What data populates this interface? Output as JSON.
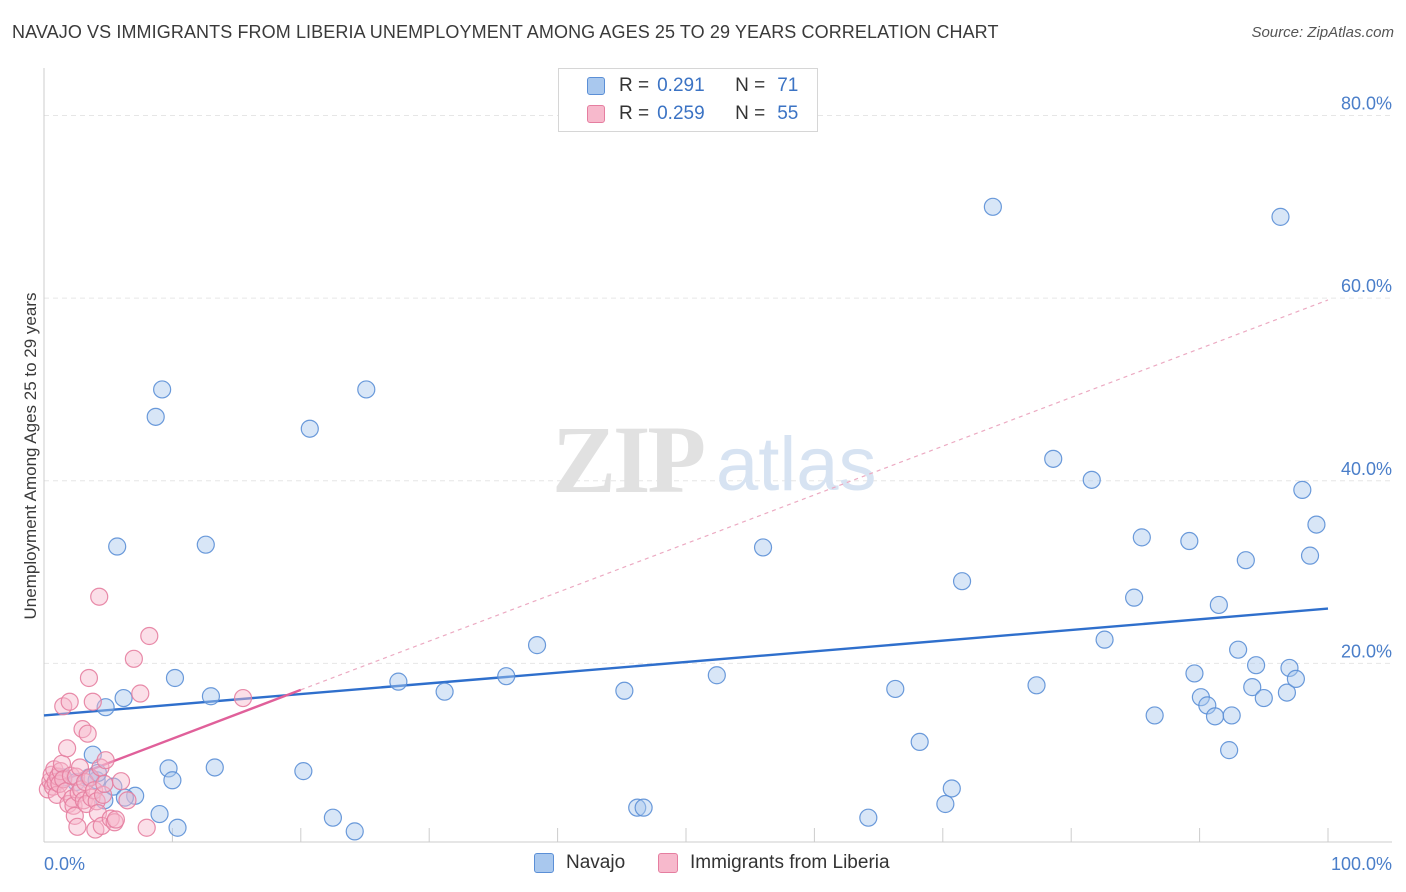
{
  "title": "NAVAJO VS IMMIGRANTS FROM LIBERIA UNEMPLOYMENT AMONG AGES 25 TO 29 YEARS CORRELATION CHART",
  "source": "Source: ZipAtlas.com",
  "watermark": {
    "zip": "ZIP",
    "atlas": "atlas"
  },
  "legend": {
    "rows": [
      {
        "r_label": "R =",
        "r_value": "0.291",
        "n_label": "N =",
        "n_value": "71"
      },
      {
        "r_label": "R =",
        "r_value": "0.259",
        "n_label": "N =",
        "n_value": "55"
      }
    ]
  },
  "colors": {
    "navajo_fill": "#a9c8ee",
    "navajo_stroke": "#5b8fd6",
    "navajo_line": "#2f6fcc",
    "liberia_fill": "#f7b9cc",
    "liberia_stroke": "#e57ea0",
    "liberia_line": "#e0609a",
    "grid": "#e6e6e6",
    "tick_text": "#4a7ec9"
  },
  "chart_data": {
    "type": "scatter",
    "title": "NAVAJO VS IMMIGRANTS FROM LIBERIA UNEMPLOYMENT AMONG AGES 25 TO 29 YEARS CORRELATION CHART",
    "xlabel": "",
    "ylabel": "Unemployment Among Ages 25 to 29 years",
    "xlim": [
      0,
      100
    ],
    "ylim": [
      0,
      84
    ],
    "x_tick_labels": [
      "0.0%",
      "100.0%"
    ],
    "y_ticks": [
      20,
      40,
      60,
      80
    ],
    "y_tick_labels": [
      "20.0%",
      "40.0%",
      "60.0%",
      "80.0%"
    ],
    "series": [
      {
        "name": "Navajo",
        "r": 0.291,
        "n": 71,
        "trend": {
          "x0": 0,
          "y0": 14.3,
          "x1": 100,
          "y1": 26.0,
          "style": "solid"
        },
        "points": [
          [
            1.5,
            7.5
          ],
          [
            2.5,
            7.0
          ],
          [
            3.5,
            7.5
          ],
          [
            3.8,
            10.0
          ],
          [
            4.1,
            7.2
          ],
          [
            4.8,
            15.2
          ],
          [
            4.2,
            8.0
          ],
          [
            5.4,
            6.5
          ],
          [
            4.7,
            5.0
          ],
          [
            5.7,
            32.8
          ],
          [
            6.2,
            16.2
          ],
          [
            7.1,
            5.5
          ],
          [
            6.3,
            5.3
          ],
          [
            8.7,
            47.0
          ],
          [
            9.2,
            50.0
          ],
          [
            9.0,
            3.5
          ],
          [
            9.7,
            8.5
          ],
          [
            10.0,
            7.2
          ],
          [
            10.2,
            18.4
          ],
          [
            10.4,
            2.0
          ],
          [
            12.6,
            33.0
          ],
          [
            13.0,
            16.4
          ],
          [
            13.3,
            8.6
          ],
          [
            20.2,
            8.2
          ],
          [
            20.7,
            45.7
          ],
          [
            22.5,
            3.1
          ],
          [
            24.2,
            1.6
          ],
          [
            25.1,
            50.0
          ],
          [
            27.6,
            18.0
          ],
          [
            31.2,
            16.9
          ],
          [
            36.0,
            18.6
          ],
          [
            38.4,
            22.0
          ],
          [
            45.2,
            17.0
          ],
          [
            46.2,
            4.2
          ],
          [
            46.7,
            4.2
          ],
          [
            52.4,
            18.7
          ],
          [
            56.0,
            32.7
          ],
          [
            64.2,
            3.1
          ],
          [
            66.3,
            17.2
          ],
          [
            68.2,
            11.4
          ],
          [
            70.2,
            4.6
          ],
          [
            70.7,
            6.3
          ],
          [
            71.5,
            29.0
          ],
          [
            73.9,
            70.0
          ],
          [
            77.3,
            17.6
          ],
          [
            78.6,
            42.4
          ],
          [
            81.6,
            40.1
          ],
          [
            82.6,
            22.6
          ],
          [
            84.9,
            27.2
          ],
          [
            85.5,
            33.8
          ],
          [
            86.5,
            14.3
          ],
          [
            89.2,
            33.4
          ],
          [
            89.6,
            18.9
          ],
          [
            90.1,
            16.3
          ],
          [
            90.6,
            15.4
          ],
          [
            91.2,
            14.2
          ],
          [
            91.5,
            26.4
          ],
          [
            92.3,
            10.5
          ],
          [
            92.5,
            14.3
          ],
          [
            93.0,
            21.5
          ],
          [
            93.6,
            31.3
          ],
          [
            94.1,
            17.4
          ],
          [
            94.4,
            19.8
          ],
          [
            95.0,
            16.2
          ],
          [
            96.3,
            68.9
          ],
          [
            96.8,
            16.8
          ],
          [
            97.0,
            19.5
          ],
          [
            97.5,
            18.3
          ],
          [
            98.0,
            39.0
          ],
          [
            98.6,
            31.8
          ],
          [
            99.1,
            35.2
          ]
        ]
      },
      {
        "name": "Immigrants from Liberia",
        "r": 0.259,
        "n": 55,
        "trend": {
          "x0": 0,
          "y0": 6.4,
          "x1": 20,
          "y1": 17.1,
          "style": "solid",
          "extension": {
            "x0": 20,
            "y0": 17.1,
            "x1": 100,
            "y1": 59.8,
            "style": "dashed"
          }
        },
        "points": [
          [
            0.3,
            6.2
          ],
          [
            0.5,
            7.1
          ],
          [
            0.6,
            7.8
          ],
          [
            0.7,
            6.5
          ],
          [
            0.8,
            8.4
          ],
          [
            0.9,
            7.0
          ],
          [
            1.0,
            5.6
          ],
          [
            1.1,
            7.6
          ],
          [
            1.2,
            6.8
          ],
          [
            1.3,
            8.2
          ],
          [
            1.4,
            9.0
          ],
          [
            1.5,
            7.3
          ],
          [
            1.5,
            15.3
          ],
          [
            1.7,
            6.0
          ],
          [
            1.8,
            10.7
          ],
          [
            1.9,
            4.6
          ],
          [
            2.0,
            15.8
          ],
          [
            2.1,
            7.7
          ],
          [
            2.2,
            5.2
          ],
          [
            2.3,
            4.4
          ],
          [
            2.4,
            3.3
          ],
          [
            2.5,
            7.6
          ],
          [
            2.6,
            2.1
          ],
          [
            2.7,
            5.8
          ],
          [
            2.8,
            8.6
          ],
          [
            2.9,
            6.2
          ],
          [
            3.0,
            12.8
          ],
          [
            3.1,
            5.0
          ],
          [
            3.2,
            7.0
          ],
          [
            3.3,
            4.6
          ],
          [
            3.4,
            12.3
          ],
          [
            3.5,
            18.4
          ],
          [
            3.6,
            7.5
          ],
          [
            3.7,
            5.3
          ],
          [
            3.8,
            15.8
          ],
          [
            3.9,
            6.1
          ],
          [
            4.0,
            1.8
          ],
          [
            4.1,
            4.9
          ],
          [
            4.2,
            3.6
          ],
          [
            4.3,
            27.3
          ],
          [
            4.4,
            8.6
          ],
          [
            4.5,
            2.2
          ],
          [
            4.6,
            5.6
          ],
          [
            4.7,
            6.8
          ],
          [
            4.8,
            9.4
          ],
          [
            5.2,
            3.0
          ],
          [
            5.5,
            2.6
          ],
          [
            5.6,
            2.9
          ],
          [
            6.0,
            7.1
          ],
          [
            6.5,
            5.0
          ],
          [
            7.0,
            20.5
          ],
          [
            7.5,
            16.7
          ],
          [
            8.0,
            2.0
          ],
          [
            8.2,
            23.0
          ],
          [
            15.5,
            16.2
          ]
        ]
      }
    ]
  },
  "bottom_legend": [
    {
      "label": "Navajo"
    },
    {
      "label": "Immigrants from Liberia"
    }
  ]
}
